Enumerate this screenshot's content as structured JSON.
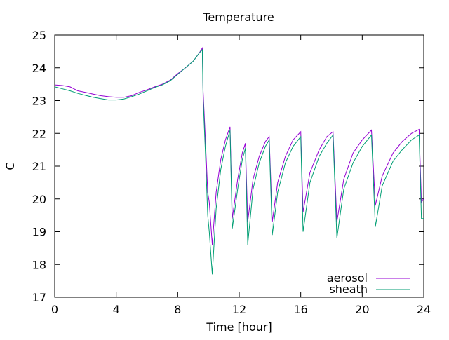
{
  "chart_data": {
    "type": "line",
    "title": "Temperature",
    "xlabel": "Time [hour]",
    "ylabel": "C",
    "xlim": [
      0,
      24
    ],
    "ylim": [
      17,
      25
    ],
    "xticks": [
      "0",
      "4",
      "8",
      "12",
      "16",
      "20",
      "24"
    ],
    "yticks": [
      "17",
      "18",
      "19",
      "20",
      "21",
      "22",
      "23",
      "24",
      "25"
    ],
    "grid": false,
    "legend_position": "bottom-right",
    "series": [
      {
        "name": "aerosol",
        "color": "#9400d3",
        "points": [
          [
            0,
            23.48
          ],
          [
            0.5,
            23.46
          ],
          [
            1,
            23.42
          ],
          [
            1.5,
            23.3
          ],
          [
            2,
            23.25
          ],
          [
            2.5,
            23.2
          ],
          [
            3,
            23.15
          ],
          [
            3.5,
            23.12
          ],
          [
            4,
            23.1
          ],
          [
            4.5,
            23.1
          ],
          [
            5,
            23.15
          ],
          [
            5.5,
            23.25
          ],
          [
            6,
            23.33
          ],
          [
            6.5,
            23.42
          ],
          [
            7,
            23.5
          ],
          [
            7.5,
            23.62
          ],
          [
            8,
            23.82
          ],
          [
            8.5,
            24.0
          ],
          [
            9,
            24.2
          ],
          [
            9.4,
            24.45
          ],
          [
            9.6,
            24.6
          ],
          [
            9.65,
            23.3
          ],
          [
            9.8,
            21.8
          ],
          [
            9.95,
            20.2
          ],
          [
            10.05,
            19.9
          ],
          [
            10.25,
            18.6
          ],
          [
            10.5,
            20.2
          ],
          [
            10.8,
            21.2
          ],
          [
            11.1,
            21.8
          ],
          [
            11.4,
            22.2
          ],
          [
            11.55,
            19.4
          ],
          [
            11.9,
            20.6
          ],
          [
            12.2,
            21.4
          ],
          [
            12.4,
            21.7
          ],
          [
            12.55,
            19.3
          ],
          [
            12.9,
            20.6
          ],
          [
            13.3,
            21.3
          ],
          [
            13.7,
            21.75
          ],
          [
            13.95,
            21.9
          ],
          [
            14.15,
            19.3
          ],
          [
            14.5,
            20.5
          ],
          [
            15.0,
            21.3
          ],
          [
            15.5,
            21.8
          ],
          [
            16.0,
            22.05
          ],
          [
            16.15,
            19.6
          ],
          [
            16.6,
            20.8
          ],
          [
            17.2,
            21.5
          ],
          [
            17.7,
            21.9
          ],
          [
            18.1,
            22.05
          ],
          [
            18.35,
            19.3
          ],
          [
            18.8,
            20.6
          ],
          [
            19.4,
            21.4
          ],
          [
            20.0,
            21.8
          ],
          [
            20.6,
            22.1
          ],
          [
            20.85,
            19.8
          ],
          [
            21.3,
            20.7
          ],
          [
            22.0,
            21.4
          ],
          [
            22.6,
            21.75
          ],
          [
            23.2,
            22.0
          ],
          [
            23.7,
            22.12
          ],
          [
            23.85,
            19.9
          ],
          [
            24,
            20.0
          ]
        ]
      },
      {
        "name": "sheath",
        "color": "#009e73",
        "points": [
          [
            0,
            23.42
          ],
          [
            0.5,
            23.36
          ],
          [
            1,
            23.3
          ],
          [
            1.5,
            23.22
          ],
          [
            2,
            23.16
          ],
          [
            2.5,
            23.1
          ],
          [
            3,
            23.06
          ],
          [
            3.5,
            23.02
          ],
          [
            4,
            23.02
          ],
          [
            4.5,
            23.05
          ],
          [
            5,
            23.12
          ],
          [
            5.5,
            23.2
          ],
          [
            6,
            23.3
          ],
          [
            6.5,
            23.4
          ],
          [
            7,
            23.48
          ],
          [
            7.5,
            23.6
          ],
          [
            8,
            23.8
          ],
          [
            8.5,
            24.0
          ],
          [
            9,
            24.2
          ],
          [
            9.4,
            24.45
          ],
          [
            9.6,
            24.55
          ],
          [
            9.65,
            23.1
          ],
          [
            9.8,
            21.4
          ],
          [
            9.95,
            19.5
          ],
          [
            10.05,
            19.0
          ],
          [
            10.25,
            17.7
          ],
          [
            10.5,
            19.7
          ],
          [
            10.8,
            20.9
          ],
          [
            11.1,
            21.6
          ],
          [
            11.4,
            22.1
          ],
          [
            11.55,
            19.1
          ],
          [
            11.9,
            20.3
          ],
          [
            12.2,
            21.2
          ],
          [
            12.4,
            21.55
          ],
          [
            12.55,
            18.6
          ],
          [
            12.9,
            20.3
          ],
          [
            13.3,
            21.1
          ],
          [
            13.7,
            21.6
          ],
          [
            13.95,
            21.8
          ],
          [
            14.15,
            18.9
          ],
          [
            14.5,
            20.2
          ],
          [
            15.0,
            21.1
          ],
          [
            15.5,
            21.6
          ],
          [
            16.0,
            21.9
          ],
          [
            16.15,
            19.0
          ],
          [
            16.6,
            20.5
          ],
          [
            17.2,
            21.3
          ],
          [
            17.7,
            21.7
          ],
          [
            18.1,
            21.95
          ],
          [
            18.35,
            18.8
          ],
          [
            18.8,
            20.3
          ],
          [
            19.4,
            21.1
          ],
          [
            20.0,
            21.6
          ],
          [
            20.6,
            21.95
          ],
          [
            20.85,
            19.15
          ],
          [
            21.3,
            20.4
          ],
          [
            22.0,
            21.15
          ],
          [
            22.6,
            21.5
          ],
          [
            23.2,
            21.8
          ],
          [
            23.7,
            21.95
          ],
          [
            23.85,
            19.4
          ],
          [
            24,
            19.4
          ]
        ]
      }
    ]
  }
}
